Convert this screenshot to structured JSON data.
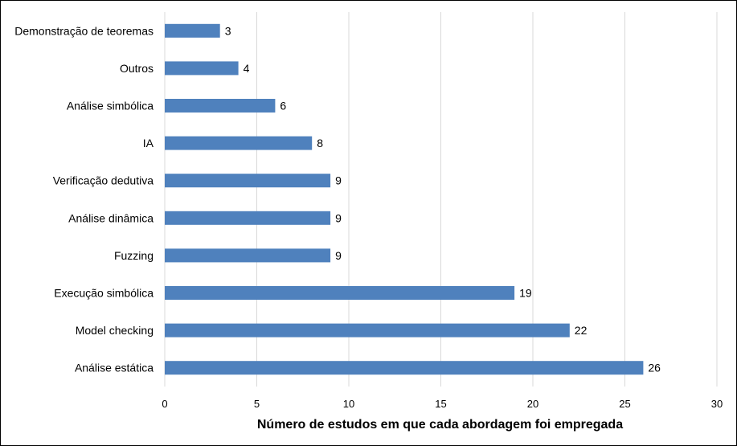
{
  "chart_data": {
    "type": "bar",
    "orientation": "horizontal",
    "categories": [
      "Demonstração de teoremas",
      "Outros",
      "Análise simbólica",
      "IA",
      "Verificação dedutiva",
      "Análise dinâmica",
      "Fuzzing",
      "Execução simbólica",
      "Model checking",
      "Análise estática"
    ],
    "values": [
      3,
      4,
      6,
      8,
      9,
      9,
      9,
      19,
      22,
      26
    ],
    "title": "",
    "xlabel": "Número de estudos em que cada abordagem foi empregada",
    "ylabel": "",
    "xlim": [
      0,
      30
    ],
    "xticks": [
      0,
      5,
      10,
      15,
      20,
      25,
      30
    ],
    "grid": "vertical",
    "data_labels": true,
    "bar_color": "#4f81bd",
    "legend": "none"
  }
}
